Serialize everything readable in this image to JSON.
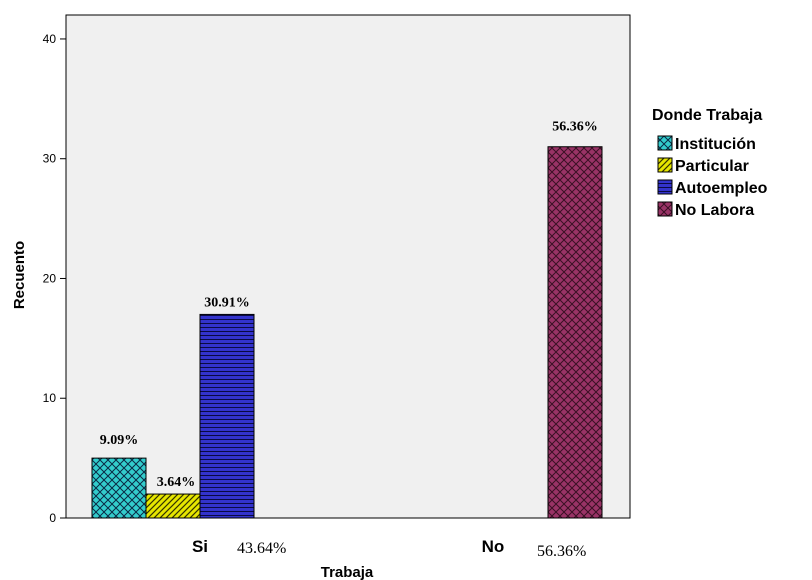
{
  "chart_data": {
    "type": "bar",
    "xlabel": "Trabaja",
    "ylabel": "Recuento",
    "ylim": [
      0,
      42
    ],
    "yticks": [
      0,
      10,
      20,
      30,
      40
    ],
    "categories": [
      "Si",
      "No"
    ],
    "category_percents": [
      "43.64%",
      "56.36%"
    ],
    "legend_title": "Donde Trabaja",
    "legend_position": "right",
    "series": [
      {
        "name": "Institución",
        "color": "#33cccc",
        "pattern": "crosshatch",
        "values": [
          5,
          null
        ],
        "labels": [
          "9.09%",
          null
        ]
      },
      {
        "name": "Particular",
        "color": "#e6e600",
        "pattern": "diagonal",
        "values": [
          2,
          null
        ],
        "labels": [
          "3.64%",
          null
        ]
      },
      {
        "name": "Autoempleo",
        "color": "#3333cc",
        "pattern": "horizontal-lines",
        "values": [
          17,
          null
        ],
        "labels": [
          "30.91%",
          null
        ]
      },
      {
        "name": "No Labora",
        "color": "#993366",
        "pattern": "dots",
        "values": [
          null,
          31
        ],
        "labels": [
          null,
          "56.36%"
        ]
      }
    ]
  }
}
